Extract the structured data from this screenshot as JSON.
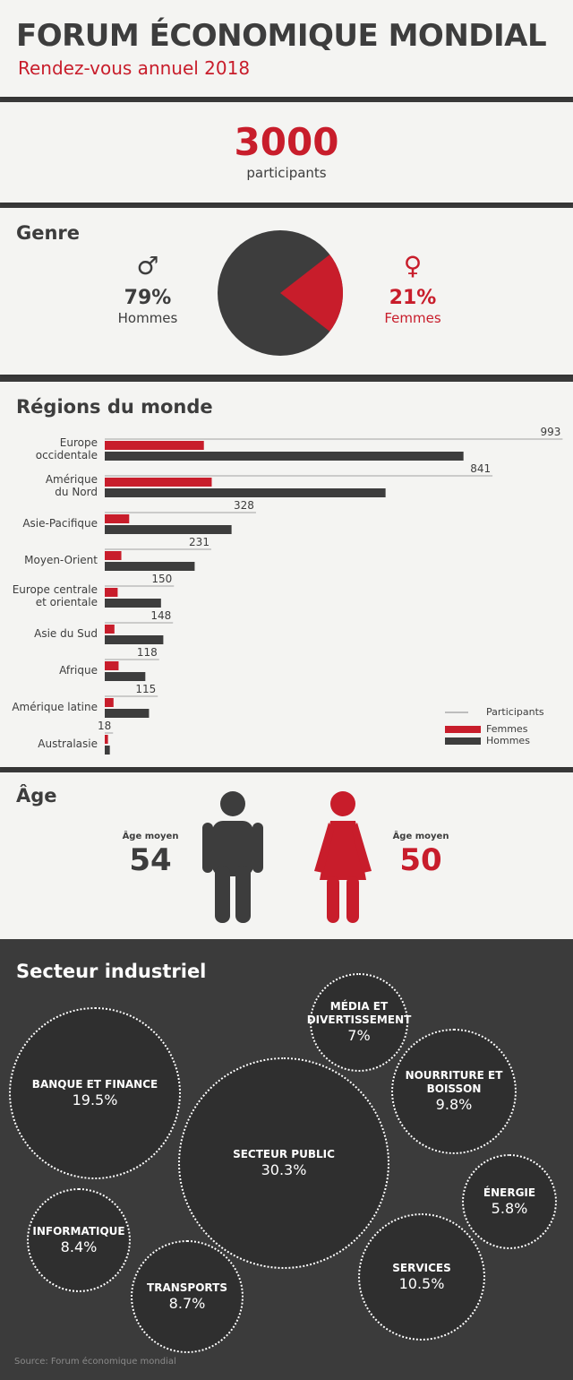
{
  "header": {
    "title": "FORUM ÉCONOMIQUE MONDIAL",
    "subtitle": "Rendez-vous annuel 2018"
  },
  "participants": {
    "count": "3000",
    "label": "participants"
  },
  "genre": {
    "title": "Genre",
    "men": {
      "symbol": "♂",
      "percent": "79%",
      "label": "Hommes",
      "value": 79
    },
    "women": {
      "symbol": "♀",
      "percent": "21%",
      "label": "Femmes",
      "value": 21
    }
  },
  "regions": {
    "title": "Régions du monde",
    "legend": {
      "participants": "Participants",
      "femmes": "Femmes",
      "hommes": "Hommes"
    }
  },
  "chart_data": {
    "type": "bar",
    "categories": [
      [
        "Europe",
        "occidentale"
      ],
      [
        "Amérique",
        "du Nord"
      ],
      [
        "Asie-Pacifique"
      ],
      [
        "Moyen-Orient"
      ],
      [
        "Europe centrale",
        "et orientale"
      ],
      [
        "Asie du Sud"
      ],
      [
        "Afrique"
      ],
      [
        "Amérique latine"
      ],
      [
        "Australasie"
      ]
    ],
    "series": [
      {
        "name": "Participants",
        "values": [
          993,
          841,
          328,
          231,
          150,
          148,
          118,
          115,
          18
        ]
      },
      {
        "name": "Femmes",
        "values": [
          215,
          232,
          53,
          36,
          28,
          21,
          30,
          19,
          7
        ]
      },
      {
        "name": "Hommes",
        "values": [
          778,
          609,
          275,
          195,
          122,
          127,
          88,
          96,
          11
        ]
      }
    ],
    "legend_position": "bottom-right"
  },
  "age": {
    "title": "Âge",
    "men": {
      "label": "Âge moyen",
      "value": "54"
    },
    "women": {
      "label": "Âge moyen",
      "value": "50"
    }
  },
  "sectors": {
    "title": "Secteur industriel",
    "items": [
      {
        "name": [
          "MÉDIA ET",
          "DIVERTISSEMENT"
        ],
        "value": "7%"
      },
      {
        "name": [
          "BANQUE ET FINANCE"
        ],
        "value": "19.5%"
      },
      {
        "name": [
          "NOURRITURE ET",
          "BOISSON"
        ],
        "value": "9.8%"
      },
      {
        "name": [
          "SECTEUR PUBLIC"
        ],
        "value": "30.3%"
      },
      {
        "name": [
          "ÉNERGIE"
        ],
        "value": "5.8%"
      },
      {
        "name": [
          "INFORMATIQUE"
        ],
        "value": "8.4%"
      },
      {
        "name": [
          "SERVICES"
        ],
        "value": "10.5%"
      },
      {
        "name": [
          "TRANSPORTS"
        ],
        "value": "8.7%"
      }
    ]
  },
  "source": "Source: Forum économique mondial",
  "colors": {
    "red": "#c81d2b",
    "dark": "#3d3d3d",
    "grey": "#bdbdbd",
    "background": "#f4f4f2",
    "dark_panel": "#3b3b3b"
  }
}
